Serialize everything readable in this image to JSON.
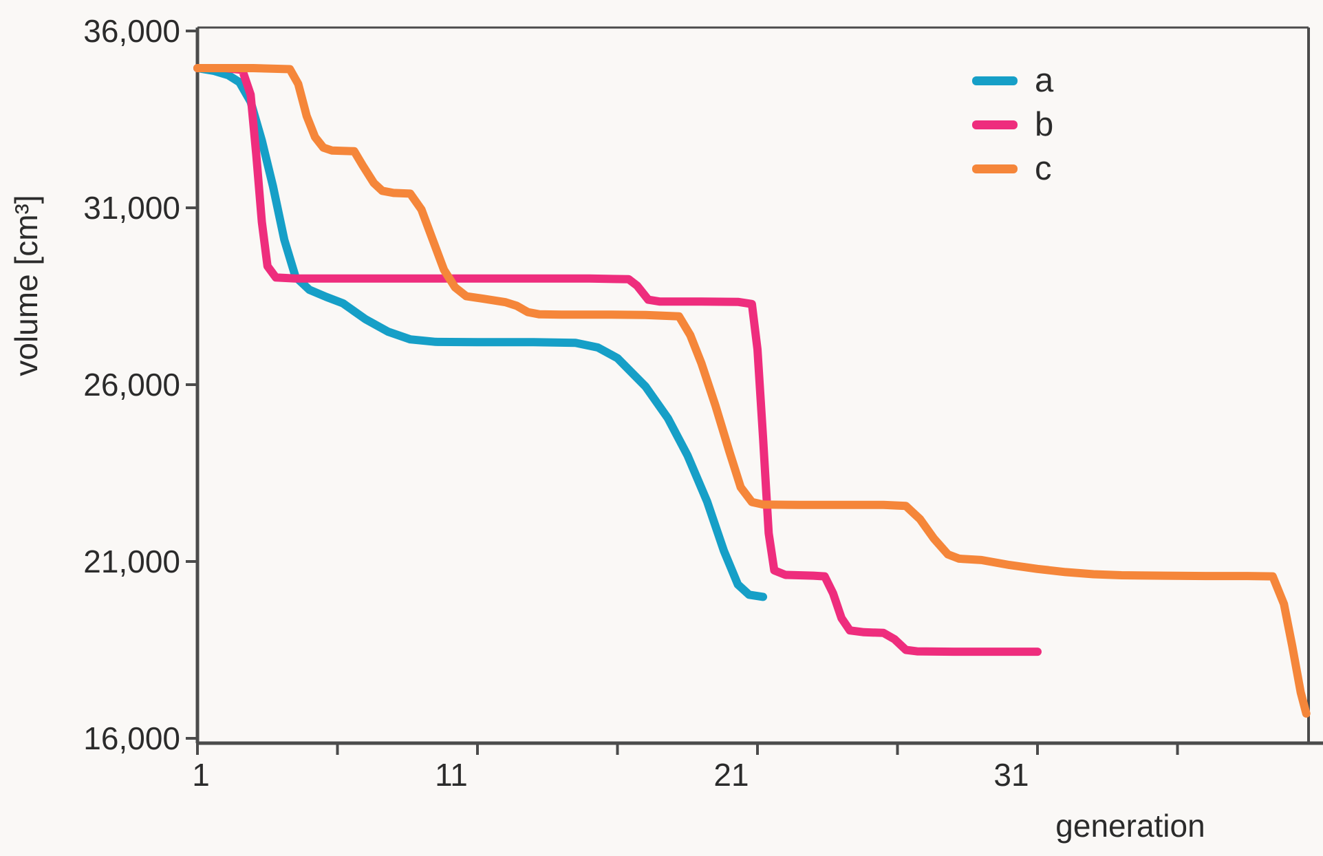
{
  "figure": {
    "background": "#faf8f6",
    "frame_color": "#4b4b4b"
  },
  "axes": {
    "x_title": "generation",
    "y_title": "volume [cm³]"
  },
  "legend": {
    "items": [
      {
        "label": "a",
        "color": "#169fc7"
      },
      {
        "label": "b",
        "color": "#ee2d7d"
      },
      {
        "label": "c",
        "color": "#f5863a"
      }
    ]
  },
  "chart_data": {
    "type": "line",
    "title": "",
    "xlabel": "generation",
    "ylabel": "volume [cm³]",
    "xlim": [
      1,
      41
    ],
    "ylim": [
      16000,
      36000
    ],
    "grid": false,
    "legend_position": "upper right",
    "y_ticks": [
      {
        "value": 36000,
        "label": "36,000"
      },
      {
        "value": 31000,
        "label": "31,000"
      },
      {
        "value": 26000,
        "label": "26,000"
      },
      {
        "value": 21000,
        "label": "21,000"
      },
      {
        "value": 16000,
        "label": "16,000"
      }
    ],
    "x_ticks": [
      {
        "gen": 1,
        "label": "1"
      },
      {
        "gen": 6,
        "label": ""
      },
      {
        "gen": 11,
        "label": "11"
      },
      {
        "gen": 16,
        "label": ""
      },
      {
        "gen": 21,
        "label": "21"
      },
      {
        "gen": 26,
        "label": ""
      },
      {
        "gen": 31,
        "label": "31"
      },
      {
        "gen": 36,
        "label": ""
      }
    ],
    "series": [
      {
        "name": "a",
        "color": "#169fc7",
        "points": [
          [
            1,
            34950
          ],
          [
            1.6,
            34870
          ],
          [
            2.1,
            34750
          ],
          [
            2.5,
            34550
          ],
          [
            2.9,
            34000
          ],
          [
            3.3,
            32900
          ],
          [
            3.7,
            31600
          ],
          [
            4.1,
            30100
          ],
          [
            4.5,
            29050
          ],
          [
            5,
            28680
          ],
          [
            5.6,
            28480
          ],
          [
            6.2,
            28300
          ],
          [
            7,
            27850
          ],
          [
            7.8,
            27500
          ],
          [
            8.6,
            27280
          ],
          [
            9.5,
            27210
          ],
          [
            11,
            27200
          ],
          [
            13,
            27200
          ],
          [
            14.5,
            27180
          ],
          [
            15.3,
            27050
          ],
          [
            16,
            26750
          ],
          [
            17,
            25950
          ],
          [
            17.8,
            25050
          ],
          [
            18.5,
            24000
          ],
          [
            19.2,
            22700
          ],
          [
            19.8,
            21300
          ],
          [
            20.3,
            20350
          ],
          [
            20.7,
            20060
          ],
          [
            21.2,
            20000
          ]
        ]
      },
      {
        "name": "b",
        "color": "#ee2d7d",
        "points": [
          [
            1,
            34950
          ],
          [
            2,
            34950
          ],
          [
            2.6,
            34900
          ],
          [
            2.9,
            34200
          ],
          [
            3.1,
            32500
          ],
          [
            3.3,
            30600
          ],
          [
            3.5,
            29350
          ],
          [
            3.8,
            29030
          ],
          [
            4.5,
            29000
          ],
          [
            6,
            29000
          ],
          [
            9,
            29000
          ],
          [
            12,
            29000
          ],
          [
            15,
            29000
          ],
          [
            16.4,
            28980
          ],
          [
            16.7,
            28800
          ],
          [
            17.1,
            28400
          ],
          [
            17.5,
            28350
          ],
          [
            19,
            28350
          ],
          [
            20.3,
            28340
          ],
          [
            20.8,
            28280
          ],
          [
            21,
            27000
          ],
          [
            21.2,
            24500
          ],
          [
            21.4,
            21800
          ],
          [
            21.6,
            20750
          ],
          [
            22,
            20620
          ],
          [
            23,
            20600
          ],
          [
            23.4,
            20580
          ],
          [
            23.7,
            20100
          ],
          [
            24,
            19400
          ],
          [
            24.3,
            19050
          ],
          [
            24.8,
            19000
          ],
          [
            25.5,
            18980
          ],
          [
            25.9,
            18800
          ],
          [
            26.3,
            18500
          ],
          [
            26.7,
            18460
          ],
          [
            28,
            18450
          ],
          [
            29.5,
            18450
          ],
          [
            31,
            18450
          ]
        ]
      },
      {
        "name": "c",
        "color": "#f5863a",
        "points": [
          [
            1,
            34950
          ],
          [
            2,
            34950
          ],
          [
            3,
            34950
          ],
          [
            4.3,
            34920
          ],
          [
            4.6,
            34500
          ],
          [
            4.9,
            33600
          ],
          [
            5.2,
            33000
          ],
          [
            5.5,
            32700
          ],
          [
            5.8,
            32620
          ],
          [
            6.6,
            32600
          ],
          [
            6.9,
            32200
          ],
          [
            7.3,
            31700
          ],
          [
            7.6,
            31480
          ],
          [
            8,
            31420
          ],
          [
            8.6,
            31400
          ],
          [
            9,
            30950
          ],
          [
            9.4,
            30100
          ],
          [
            9.8,
            29250
          ],
          [
            10.2,
            28750
          ],
          [
            10.6,
            28500
          ],
          [
            11.2,
            28430
          ],
          [
            12,
            28330
          ],
          [
            12.4,
            28230
          ],
          [
            12.8,
            28050
          ],
          [
            13.2,
            27990
          ],
          [
            14,
            27980
          ],
          [
            15.5,
            27980
          ],
          [
            17,
            27970
          ],
          [
            18.2,
            27930
          ],
          [
            18.6,
            27400
          ],
          [
            19,
            26600
          ],
          [
            19.5,
            25400
          ],
          [
            20,
            24100
          ],
          [
            20.4,
            23100
          ],
          [
            20.8,
            22680
          ],
          [
            21.2,
            22610
          ],
          [
            22.5,
            22600
          ],
          [
            24,
            22600
          ],
          [
            25.5,
            22600
          ],
          [
            26.3,
            22570
          ],
          [
            26.8,
            22200
          ],
          [
            27.3,
            21650
          ],
          [
            27.8,
            21200
          ],
          [
            28.2,
            21080
          ],
          [
            29,
            21040
          ],
          [
            30,
            20900
          ],
          [
            31,
            20790
          ],
          [
            32,
            20700
          ],
          [
            33,
            20640
          ],
          [
            34,
            20610
          ],
          [
            35.5,
            20600
          ],
          [
            37,
            20590
          ],
          [
            38.5,
            20590
          ],
          [
            39.4,
            20580
          ],
          [
            39.8,
            19800
          ],
          [
            40.1,
            18600
          ],
          [
            40.4,
            17300
          ],
          [
            40.6,
            16700
          ]
        ]
      }
    ]
  }
}
